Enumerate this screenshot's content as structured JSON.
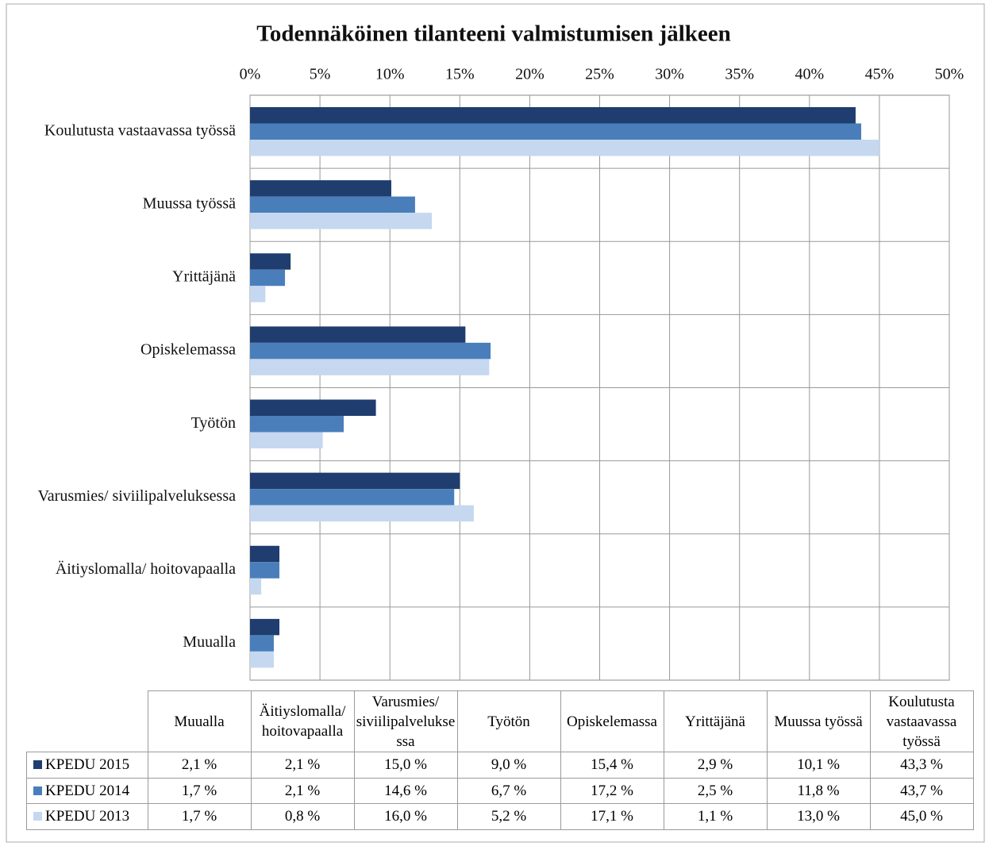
{
  "chart_data": {
    "type": "bar",
    "orientation": "horizontal",
    "title": "Todennäköinen  tilanteeni  valmistumisen  jälkeen",
    "categories": [
      "Muualla",
      "Äitiyslomalla/ hoitovapaalla",
      "Varusmies/ siviilipalveluksessa",
      "Työtön",
      "Opiskelemassa",
      "Yrittäjänä",
      "Muussa työssä",
      "Koulutusta vastaavassa työssä"
    ],
    "series": [
      {
        "name": "KPEDU 2015",
        "color": "#1f3d6e",
        "values": [
          2.1,
          2.1,
          15.0,
          9.0,
          15.4,
          2.9,
          10.1,
          43.3
        ],
        "value_labels": [
          "2,1 %",
          "2,1 %",
          "15,0 %",
          "9,0 %",
          "15,4 %",
          "2,9 %",
          "10,1 %",
          "43,3 %"
        ]
      },
      {
        "name": "KPEDU 2014",
        "color": "#4a7ebb",
        "values": [
          1.7,
          2.1,
          14.6,
          6.7,
          17.2,
          2.5,
          11.8,
          43.7
        ],
        "value_labels": [
          "1,7 %",
          "2,1 %",
          "14,6 %",
          "6,7 %",
          "17,2 %",
          "2,5 %",
          "11,8 %",
          "43,7 %"
        ]
      },
      {
        "name": "KPEDU 2013",
        "color": "#c5d8f0",
        "values": [
          1.7,
          0.8,
          16.0,
          5.2,
          17.1,
          1.1,
          13.0,
          45.0
        ],
        "value_labels": [
          "1,7 %",
          "0,8 %",
          "16,0 %",
          "5,2 %",
          "17,1 %",
          "1,1 %",
          "13,0 %",
          "45,0 %"
        ]
      }
    ],
    "xlim": [
      0,
      50
    ],
    "xticks": [
      {
        "value": 0,
        "label": "0%"
      },
      {
        "value": 5,
        "label": "5%"
      },
      {
        "value": 10,
        "label": "10%"
      },
      {
        "value": 15,
        "label": "15%"
      },
      {
        "value": 20,
        "label": "20%"
      },
      {
        "value": 25,
        "label": "25%"
      },
      {
        "value": 30,
        "label": "30%"
      },
      {
        "value": 35,
        "label": "35%"
      },
      {
        "value": 40,
        "label": "40%"
      },
      {
        "value": 45,
        "label": "45%"
      },
      {
        "value": 50,
        "label": "50%"
      }
    ],
    "grid": true
  }
}
